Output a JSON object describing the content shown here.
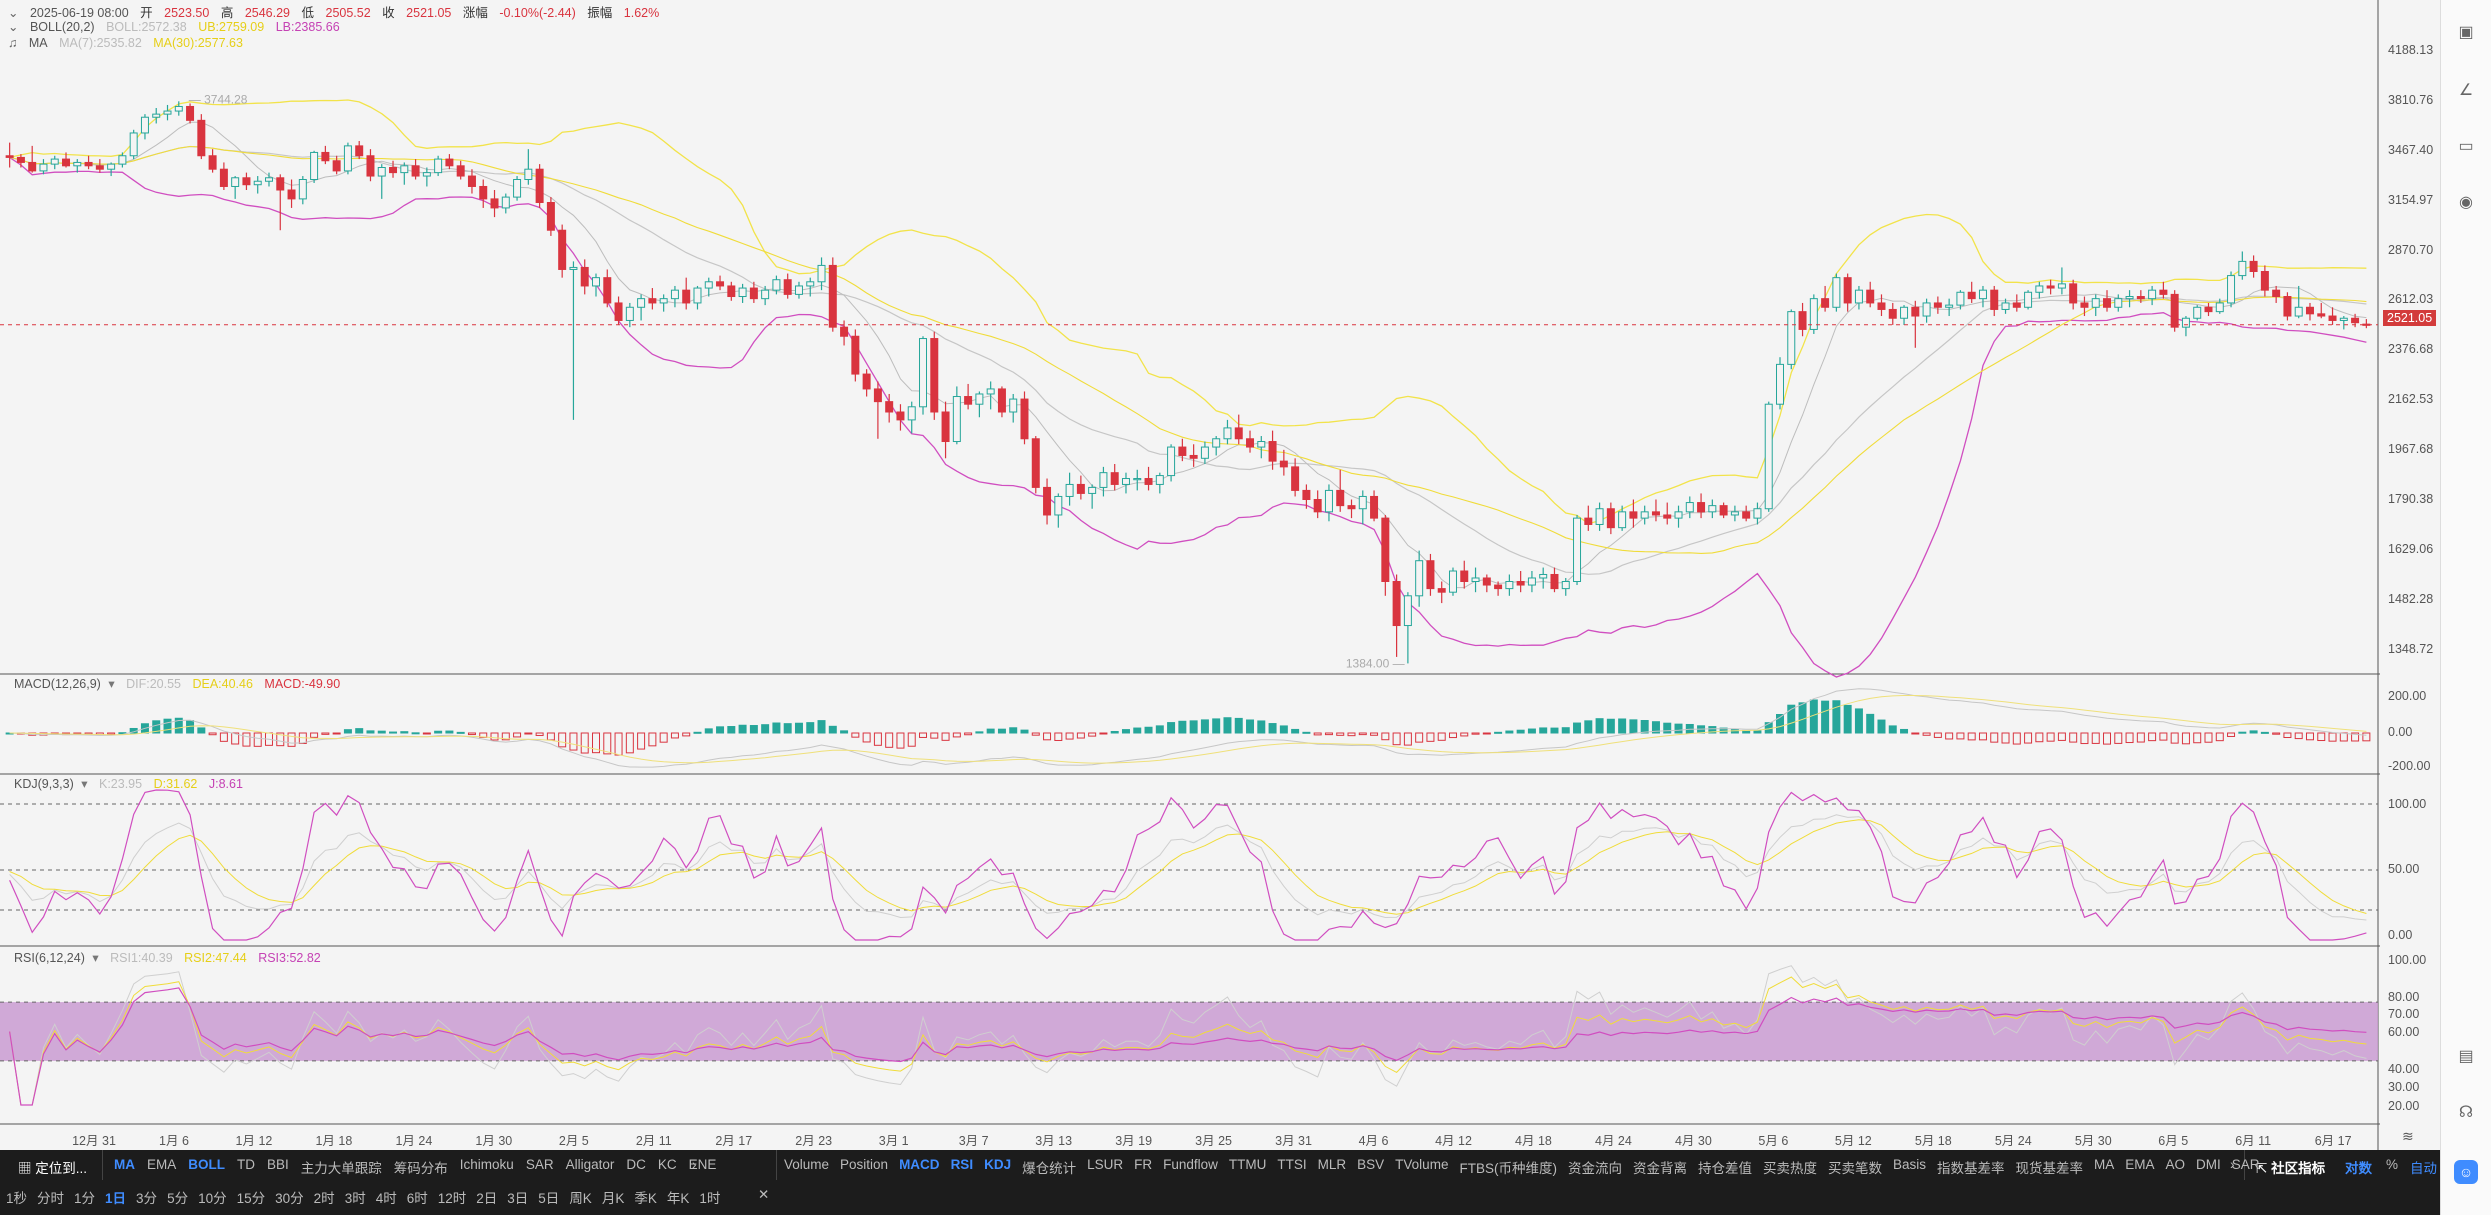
{
  "header": {
    "date": "2025-06-19 08:00",
    "open_label": "开",
    "open": "2523.50",
    "high_label": "高",
    "high": "2546.29",
    "low_label": "低",
    "low": "2505.52",
    "close_label": "收",
    "close": "2521.05",
    "change_label": "涨幅",
    "change": "-0.10%(-2.44)",
    "amp_label": "振幅",
    "amp": "1.62%"
  },
  "indicators": {
    "boll": {
      "name": "BOLL(20,2)",
      "mid": "BOLL:2572.38",
      "ub": "UB:2759.09",
      "lb": "LB:2385.66"
    },
    "ma": {
      "name": "MA",
      "ma7": "MA(7):2535.82",
      "ma30": "MA(30):2577.63"
    },
    "macd": {
      "name": "MACD(12,26,9)",
      "dif": "DIF:20.55",
      "dea": "DEA:40.46",
      "macd": "MACD:-49.90"
    },
    "kdj": {
      "name": "KDJ(9,3,3)",
      "k": "K:23.95",
      "d": "D:31.62",
      "j": "J:8.61"
    },
    "rsi": {
      "name": "RSI(6,12,24)",
      "rsi1": "RSI1:40.39",
      "rsi2": "RSI2:47.44",
      "rsi3": "RSI3:52.82"
    }
  },
  "colors": {
    "up": "#26a69a",
    "down": "#d9343f",
    "ub": "#f2e34a",
    "lb": "#d04ec0",
    "mid": "#c6c6c6",
    "ma7": "#bdbdbd",
    "ma30": "#f0dc3a",
    "dif": "#c6c6c6",
    "dea": "#efe07a",
    "k": "#cfcfcf",
    "d": "#f0dc3a",
    "j": "#d04ec0",
    "rsi_band": "#c99bd1",
    "accent": "#3f8cff"
  },
  "price_axis": [
    "4188.13",
    "3810.76",
    "3467.40",
    "3154.97",
    "2870.70",
    "2612.03",
    "2376.68",
    "2162.53",
    "1967.68",
    "1790.38",
    "1629.06",
    "1482.28",
    "1348.72"
  ],
  "current_price_tag": "2521.05",
  "macd_axis": [
    "200.00",
    "0.00",
    "-200.00"
  ],
  "kdj_axis": [
    "100.00",
    "50.00",
    "0.00"
  ],
  "rsi_axis": [
    "100.00",
    "80.00",
    "70.00",
    "60.00",
    "40.00",
    "30.00",
    "20.00"
  ],
  "x_axis": [
    "12月 31",
    "1月 6",
    "1月 12",
    "1月 18",
    "1月 24",
    "1月 30",
    "2月 5",
    "2月 11",
    "2月 17",
    "2月 23",
    "3月 1",
    "3月 7",
    "3月 13",
    "3月 19",
    "3月 25",
    "3月 31",
    "4月 6",
    "4月 12",
    "4月 18",
    "4月 24",
    "4月 30",
    "5月 6",
    "5月 12",
    "5月 18",
    "5月 24",
    "5月 30",
    "6月 5",
    "6月 11",
    "6月 17"
  ],
  "annotations": {
    "high_mark": "3744.28",
    "low_mark": "1384.00"
  },
  "right_toolbar": [
    "camera-icon",
    "trend-line-icon",
    "screen-icon",
    "broadcast-icon",
    "layout-icon",
    "headset-icon"
  ],
  "bottom": {
    "locate": "定位到...",
    "main_inds": [
      "MA",
      "EMA",
      "BOLL",
      "TD",
      "BBI",
      "主力大单跟踪",
      "筹码分布",
      "Ichimoku",
      "SAR",
      "Alligator",
      "DC",
      "KC",
      "ENE"
    ],
    "sub_inds": [
      "Volume",
      "Position",
      "MACD",
      "RSI",
      "KDJ",
      "爆仓统计",
      "LSUR",
      "FR",
      "Fundflow",
      "TTMU",
      "TTSI",
      "MLR",
      "BSV",
      "TVolume",
      "FTBS(币种维度)",
      "资金流向",
      "资金背离",
      "持仓差值",
      "买卖热度",
      "买卖笔数",
      "Basis",
      "指数基差率",
      "现货基差率",
      "MA",
      "EMA",
      "AO",
      "DMI",
      "SAR"
    ],
    "community": "社区指标",
    "scale_log": "对数",
    "scale_pct": "%",
    "scale_auto": "自动",
    "periods": [
      "1秒",
      "分时",
      "1分",
      "1日",
      "3分",
      "5分",
      "10分",
      "15分",
      "30分",
      "2时",
      "3时",
      "4时",
      "6时",
      "12时",
      "2日",
      "3日",
      "5日",
      "周K",
      "月K",
      "季K",
      "年K",
      "1时"
    ],
    "active_period": "1日"
  },
  "chart_data": {
    "type": "candlestick",
    "log_scale": true,
    "ylim": [
      1348.72,
      4188.13
    ],
    "x_start": "2024-12-26",
    "ohlc": [
      [
        3400,
        3480,
        3330,
        3390
      ],
      [
        3390,
        3410,
        3330,
        3360
      ],
      [
        3360,
        3460,
        3300,
        3310
      ],
      [
        3310,
        3380,
        3290,
        3350
      ],
      [
        3350,
        3400,
        3320,
        3380
      ],
      [
        3380,
        3420,
        3330,
        3340
      ],
      [
        3340,
        3380,
        3300,
        3360
      ],
      [
        3360,
        3400,
        3320,
        3340
      ],
      [
        3340,
        3380,
        3300,
        3320
      ],
      [
        3320,
        3360,
        3280,
        3350
      ],
      [
        3350,
        3420,
        3330,
        3400
      ],
      [
        3400,
        3560,
        3380,
        3540
      ],
      [
        3540,
        3660,
        3500,
        3640
      ],
      [
        3640,
        3700,
        3600,
        3660
      ],
      [
        3660,
        3720,
        3620,
        3680
      ],
      [
        3680,
        3744,
        3650,
        3710
      ],
      [
        3710,
        3730,
        3600,
        3620
      ],
      [
        3620,
        3660,
        3380,
        3400
      ],
      [
        3400,
        3440,
        3300,
        3320
      ],
      [
        3320,
        3360,
        3200,
        3220
      ],
      [
        3220,
        3280,
        3150,
        3270
      ],
      [
        3270,
        3300,
        3200,
        3230
      ],
      [
        3230,
        3280,
        3180,
        3250
      ],
      [
        3250,
        3300,
        3220,
        3270
      ],
      [
        3270,
        3290,
        2980,
        3200
      ],
      [
        3200,
        3260,
        3100,
        3150
      ],
      [
        3150,
        3280,
        3120,
        3260
      ],
      [
        3260,
        3430,
        3240,
        3420
      ],
      [
        3420,
        3460,
        3350,
        3370
      ],
      [
        3370,
        3400,
        3290,
        3310
      ],
      [
        3310,
        3480,
        3290,
        3460
      ],
      [
        3460,
        3490,
        3380,
        3400
      ],
      [
        3400,
        3440,
        3250,
        3280
      ],
      [
        3280,
        3350,
        3150,
        3330
      ],
      [
        3330,
        3370,
        3270,
        3300
      ],
      [
        3300,
        3360,
        3230,
        3340
      ],
      [
        3340,
        3380,
        3260,
        3280
      ],
      [
        3280,
        3330,
        3220,
        3300
      ],
      [
        3300,
        3400,
        3280,
        3380
      ],
      [
        3380,
        3410,
        3320,
        3340
      ],
      [
        3340,
        3370,
        3260,
        3280
      ],
      [
        3280,
        3320,
        3180,
        3220
      ],
      [
        3220,
        3260,
        3100,
        3150
      ],
      [
        3150,
        3200,
        3050,
        3100
      ],
      [
        3100,
        3180,
        3070,
        3160
      ],
      [
        3160,
        3280,
        3140,
        3260
      ],
      [
        3260,
        3440,
        3230,
        3320
      ],
      [
        3320,
        3350,
        3100,
        3130
      ],
      [
        3130,
        3160,
        2950,
        2980
      ],
      [
        2980,
        3010,
        2740,
        2780
      ],
      [
        2780,
        2820,
        2130,
        2790
      ],
      [
        2790,
        2830,
        2660,
        2700
      ],
      [
        2700,
        2760,
        2650,
        2740
      ],
      [
        2740,
        2780,
        2600,
        2620
      ],
      [
        2620,
        2650,
        2520,
        2540
      ],
      [
        2540,
        2620,
        2510,
        2600
      ],
      [
        2600,
        2660,
        2540,
        2640
      ],
      [
        2640,
        2690,
        2590,
        2620
      ],
      [
        2620,
        2660,
        2580,
        2640
      ],
      [
        2640,
        2700,
        2600,
        2680
      ],
      [
        2680,
        2740,
        2590,
        2620
      ],
      [
        2620,
        2700,
        2590,
        2690
      ],
      [
        2690,
        2740,
        2650,
        2720
      ],
      [
        2720,
        2750,
        2680,
        2700
      ],
      [
        2700,
        2720,
        2630,
        2650
      ],
      [
        2650,
        2710,
        2620,
        2690
      ],
      [
        2690,
        2720,
        2620,
        2640
      ],
      [
        2640,
        2700,
        2610,
        2680
      ],
      [
        2680,
        2750,
        2660,
        2730
      ],
      [
        2730,
        2760,
        2640,
        2660
      ],
      [
        2660,
        2720,
        2640,
        2700
      ],
      [
        2700,
        2740,
        2650,
        2720
      ],
      [
        2720,
        2840,
        2680,
        2800
      ],
      [
        2800,
        2840,
        2490,
        2510
      ],
      [
        2510,
        2540,
        2430,
        2470
      ],
      [
        2470,
        2500,
        2280,
        2310
      ],
      [
        2310,
        2330,
        2220,
        2250
      ],
      [
        2250,
        2280,
        2060,
        2200
      ],
      [
        2200,
        2230,
        2120,
        2160
      ],
      [
        2160,
        2190,
        2090,
        2130
      ],
      [
        2130,
        2200,
        2080,
        2180
      ],
      [
        2180,
        2470,
        2150,
        2460
      ],
      [
        2460,
        2490,
        2130,
        2160
      ],
      [
        2160,
        2200,
        1990,
        2050
      ],
      [
        2050,
        2260,
        2040,
        2220
      ],
      [
        2220,
        2270,
        2170,
        2190
      ],
      [
        2190,
        2240,
        2140,
        2230
      ],
      [
        2230,
        2280,
        2170,
        2250
      ],
      [
        2250,
        2260,
        2140,
        2160
      ],
      [
        2160,
        2230,
        2120,
        2210
      ],
      [
        2210,
        2240,
        2040,
        2060
      ],
      [
        2060,
        2070,
        1870,
        1890
      ],
      [
        1890,
        1920,
        1770,
        1800
      ],
      [
        1800,
        1870,
        1760,
        1860
      ],
      [
        1860,
        1940,
        1830,
        1900
      ],
      [
        1900,
        1930,
        1850,
        1870
      ],
      [
        1870,
        1900,
        1820,
        1890
      ],
      [
        1890,
        1960,
        1860,
        1940
      ],
      [
        1940,
        1970,
        1880,
        1900
      ],
      [
        1900,
        1940,
        1870,
        1920
      ],
      [
        1920,
        1950,
        1880,
        1920
      ],
      [
        1920,
        1960,
        1880,
        1900
      ],
      [
        1900,
        1940,
        1870,
        1930
      ],
      [
        1930,
        2040,
        1910,
        2030
      ],
      [
        2030,
        2060,
        1980,
        2000
      ],
      [
        2000,
        2040,
        1960,
        1990
      ],
      [
        1990,
        2050,
        1970,
        2030
      ],
      [
        2030,
        2070,
        2000,
        2060
      ],
      [
        2060,
        2130,
        2040,
        2100
      ],
      [
        2100,
        2150,
        2040,
        2060
      ],
      [
        2060,
        2090,
        2010,
        2030
      ],
      [
        2030,
        2070,
        1990,
        2050
      ],
      [
        2050,
        2090,
        1950,
        1980
      ],
      [
        1980,
        2020,
        1930,
        1960
      ],
      [
        1960,
        1990,
        1860,
        1880
      ],
      [
        1880,
        1900,
        1820,
        1850
      ],
      [
        1850,
        1880,
        1790,
        1810
      ],
      [
        1810,
        1900,
        1780,
        1880
      ],
      [
        1880,
        1950,
        1810,
        1830
      ],
      [
        1830,
        1850,
        1790,
        1820
      ],
      [
        1820,
        1880,
        1770,
        1860
      ],
      [
        1860,
        1880,
        1780,
        1790
      ],
      [
        1790,
        1800,
        1560,
        1600
      ],
      [
        1600,
        1620,
        1400,
        1480
      ],
      [
        1480,
        1570,
        1384,
        1560
      ],
      [
        1560,
        1690,
        1530,
        1660
      ],
      [
        1660,
        1680,
        1560,
        1580
      ],
      [
        1580,
        1600,
        1540,
        1570
      ],
      [
        1570,
        1640,
        1560,
        1630
      ],
      [
        1630,
        1660,
        1580,
        1600
      ],
      [
        1600,
        1640,
        1570,
        1610
      ],
      [
        1610,
        1620,
        1570,
        1590
      ],
      [
        1590,
        1600,
        1560,
        1580
      ],
      [
        1580,
        1620,
        1560,
        1600
      ],
      [
        1600,
        1630,
        1570,
        1590
      ],
      [
        1590,
        1630,
        1570,
        1610
      ],
      [
        1610,
        1640,
        1580,
        1620
      ],
      [
        1620,
        1640,
        1570,
        1580
      ],
      [
        1580,
        1610,
        1560,
        1600
      ],
      [
        1600,
        1800,
        1590,
        1790
      ],
      [
        1790,
        1830,
        1750,
        1770
      ],
      [
        1770,
        1840,
        1750,
        1820
      ],
      [
        1820,
        1840,
        1740,
        1760
      ],
      [
        1760,
        1830,
        1750,
        1810
      ],
      [
        1810,
        1850,
        1760,
        1790
      ],
      [
        1790,
        1830,
        1770,
        1810
      ],
      [
        1810,
        1850,
        1780,
        1800
      ],
      [
        1800,
        1840,
        1770,
        1790
      ],
      [
        1790,
        1830,
        1760,
        1810
      ],
      [
        1810,
        1860,
        1790,
        1840
      ],
      [
        1840,
        1870,
        1790,
        1810
      ],
      [
        1810,
        1850,
        1790,
        1830
      ],
      [
        1830,
        1840,
        1790,
        1800
      ],
      [
        1800,
        1830,
        1780,
        1810
      ],
      [
        1810,
        1830,
        1780,
        1790
      ],
      [
        1790,
        1840,
        1770,
        1820
      ],
      [
        1820,
        2200,
        1810,
        2190
      ],
      [
        2190,
        2380,
        2170,
        2350
      ],
      [
        2350,
        2590,
        2330,
        2580
      ],
      [
        2580,
        2620,
        2470,
        2500
      ],
      [
        2500,
        2660,
        2480,
        2640
      ],
      [
        2640,
        2700,
        2580,
        2600
      ],
      [
        2600,
        2760,
        2580,
        2740
      ],
      [
        2740,
        2760,
        2580,
        2620
      ],
      [
        2620,
        2700,
        2590,
        2680
      ],
      [
        2680,
        2720,
        2600,
        2620
      ],
      [
        2620,
        2660,
        2560,
        2590
      ],
      [
        2590,
        2620,
        2520,
        2550
      ],
      [
        2550,
        2610,
        2520,
        2600
      ],
      [
        2600,
        2630,
        2420,
        2560
      ],
      [
        2560,
        2640,
        2530,
        2620
      ],
      [
        2620,
        2650,
        2570,
        2600
      ],
      [
        2600,
        2640,
        2560,
        2610
      ],
      [
        2610,
        2680,
        2590,
        2670
      ],
      [
        2670,
        2720,
        2620,
        2640
      ],
      [
        2640,
        2700,
        2600,
        2680
      ],
      [
        2680,
        2700,
        2560,
        2590
      ],
      [
        2590,
        2640,
        2570,
        2620
      ],
      [
        2620,
        2660,
        2580,
        2600
      ],
      [
        2600,
        2680,
        2590,
        2670
      ],
      [
        2670,
        2720,
        2640,
        2700
      ],
      [
        2700,
        2730,
        2660,
        2690
      ],
      [
        2690,
        2790,
        2660,
        2710
      ],
      [
        2710,
        2730,
        2590,
        2620
      ],
      [
        2620,
        2650,
        2560,
        2600
      ],
      [
        2600,
        2660,
        2560,
        2640
      ],
      [
        2640,
        2680,
        2580,
        2600
      ],
      [
        2600,
        2660,
        2580,
        2640
      ],
      [
        2640,
        2680,
        2600,
        2650
      ],
      [
        2650,
        2680,
        2620,
        2640
      ],
      [
        2640,
        2700,
        2610,
        2680
      ],
      [
        2680,
        2720,
        2640,
        2660
      ],
      [
        2660,
        2680,
        2490,
        2510
      ],
      [
        2510,
        2560,
        2470,
        2550
      ],
      [
        2550,
        2610,
        2540,
        2600
      ],
      [
        2600,
        2620,
        2560,
        2580
      ],
      [
        2580,
        2640,
        2570,
        2620
      ],
      [
        2620,
        2770,
        2600,
        2750
      ],
      [
        2750,
        2870,
        2730,
        2820
      ],
      [
        2820,
        2850,
        2740,
        2770
      ],
      [
        2770,
        2800,
        2650,
        2680
      ],
      [
        2680,
        2700,
        2620,
        2650
      ],
      [
        2650,
        2670,
        2540,
        2560
      ],
      [
        2560,
        2700,
        2550,
        2600
      ],
      [
        2600,
        2620,
        2540,
        2570
      ],
      [
        2570,
        2620,
        2550,
        2560
      ],
      [
        2560,
        2600,
        2520,
        2540
      ],
      [
        2540,
        2560,
        2500,
        2550
      ],
      [
        2550,
        2570,
        2510,
        2530
      ],
      [
        2523.5,
        2546.29,
        2505.52,
        2521.05
      ]
    ]
  }
}
